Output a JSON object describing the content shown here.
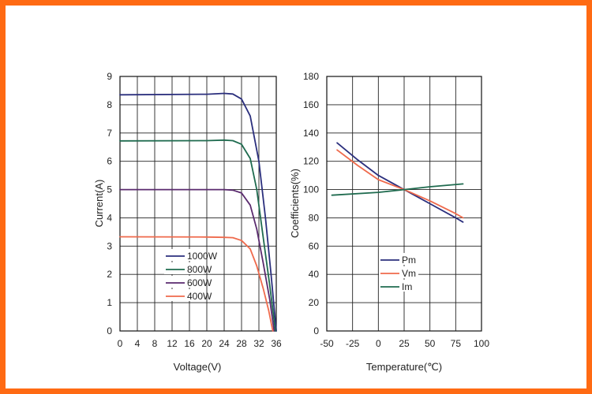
{
  "chart_data": [
    {
      "type": "line",
      "xlabel": "Voltage(V)",
      "ylabel": "Current(A)",
      "xlim": [
        0,
        36
      ],
      "ylim": [
        0,
        9
      ],
      "x_ticks": [
        "0",
        "4",
        "8",
        "12",
        "16",
        "20",
        "24",
        "28",
        "32",
        "36"
      ],
      "y_ticks": [
        "0",
        "1",
        "2",
        "3",
        "4",
        "5",
        "6",
        "7",
        "8",
        "9"
      ],
      "grid": true,
      "legend_position": "bottom-left",
      "series": [
        {
          "name": "1000W",
          "color": "#2b2f7d",
          "points": [
            [
              0,
              8.35
            ],
            [
              20,
              8.37
            ],
            [
              24,
              8.4
            ],
            [
              26,
              8.38
            ],
            [
              28,
              8.2
            ],
            [
              30,
              7.6
            ],
            [
              32,
              6.0
            ],
            [
              33.5,
              4.0
            ],
            [
              34.8,
              2.0
            ],
            [
              36,
              0
            ]
          ]
        },
        {
          "name": "800W",
          "color": "#1f6b4f",
          "points": [
            [
              0,
              6.72
            ],
            [
              20,
              6.73
            ],
            [
              24,
              6.75
            ],
            [
              26,
              6.73
            ],
            [
              28,
              6.6
            ],
            [
              30,
              6.1
            ],
            [
              31.5,
              5.0
            ],
            [
              33,
              3.3
            ],
            [
              34.5,
              1.6
            ],
            [
              35.8,
              0
            ]
          ]
        },
        {
          "name": "600W",
          "color": "#5a2a6e",
          "points": [
            [
              0,
              5.0
            ],
            [
              20,
              5.0
            ],
            [
              24,
              5.0
            ],
            [
              26,
              4.98
            ],
            [
              28,
              4.88
            ],
            [
              30,
              4.45
            ],
            [
              31.5,
              3.6
            ],
            [
              33,
              2.4
            ],
            [
              34.5,
              1.1
            ],
            [
              35.5,
              0
            ]
          ]
        },
        {
          "name": "400W",
          "color": "#ef6a4c",
          "points": [
            [
              0,
              3.33
            ],
            [
              20,
              3.32
            ],
            [
              24,
              3.31
            ],
            [
              26,
              3.3
            ],
            [
              28,
              3.2
            ],
            [
              30,
              2.9
            ],
            [
              31.5,
              2.3
            ],
            [
              33,
              1.5
            ],
            [
              34.3,
              0.7
            ],
            [
              35.2,
              0
            ]
          ]
        }
      ]
    },
    {
      "type": "line",
      "xlabel": "Temperature(℃)",
      "ylabel": "Coefficients(%)",
      "xlim": [
        -50,
        100
      ],
      "ylim": [
        0,
        180
      ],
      "x_ticks": [
        "-50",
        "-25",
        "0",
        "25",
        "50",
        "75",
        "100"
      ],
      "y_ticks": [
        "0",
        "20",
        "40",
        "60",
        "80",
        "100",
        "120",
        "140",
        "160",
        "180"
      ],
      "grid": true,
      "legend_position": "bottom-left",
      "series": [
        {
          "name": "Pm",
          "color": "#2b2f7d",
          "points": [
            [
              -40,
              133
            ],
            [
              -20,
              121
            ],
            [
              0,
              110
            ],
            [
              25,
              100
            ],
            [
              50,
              90
            ],
            [
              75,
              80
            ],
            [
              82,
              77
            ]
          ]
        },
        {
          "name": "Vm",
          "color": "#ef6a4c",
          "points": [
            [
              -40,
              128
            ],
            [
              -20,
              117
            ],
            [
              0,
              107
            ],
            [
              25,
              100
            ],
            [
              50,
              92
            ],
            [
              75,
              83
            ],
            [
              82,
              80
            ]
          ]
        },
        {
          "name": "Im",
          "color": "#1f6b4f",
          "points": [
            [
              -45,
              96
            ],
            [
              0,
              98
            ],
            [
              25,
              100
            ],
            [
              50,
              102
            ],
            [
              82,
              104
            ]
          ]
        }
      ]
    }
  ]
}
